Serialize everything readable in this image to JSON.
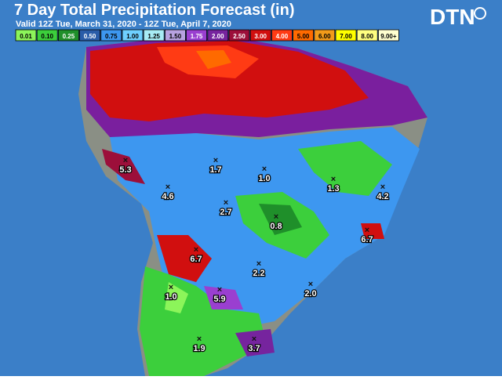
{
  "header": {
    "title": "7 Day Total Precipitation Forecast (in)",
    "subtitle": "Valid 12Z Tue, March 31, 2020 - 12Z Tue, April 7, 2020",
    "logo": "DTN"
  },
  "legend": [
    {
      "label": "0.01",
      "color": "#8cf55a"
    },
    {
      "label": "0.10",
      "color": "#3ccf3c"
    },
    {
      "label": "0.25",
      "color": "#1f8f2a"
    },
    {
      "label": "0.50",
      "color": "#2a5ca8"
    },
    {
      "label": "0.75",
      "color": "#3d97f0"
    },
    {
      "label": "1.00",
      "color": "#6fd0ff"
    },
    {
      "label": "1.25",
      "color": "#a8ecf5"
    },
    {
      "label": "1.50",
      "color": "#b7a2e0"
    },
    {
      "label": "1.75",
      "color": "#9a3fd0"
    },
    {
      "label": "2.00",
      "color": "#76249e"
    },
    {
      "label": "2.50",
      "color": "#9c0f3a"
    },
    {
      "label": "3.00",
      "color": "#d10f0f"
    },
    {
      "label": "4.00",
      "color": "#ff3b14"
    },
    {
      "label": "5.00",
      "color": "#ff6a00"
    },
    {
      "label": "6.00",
      "color": "#f29b1a"
    },
    {
      "label": "7.00",
      "color": "#ffff00"
    },
    {
      "label": "8.00",
      "color": "#ffff80"
    },
    {
      "label": "9.00+",
      "color": "#ffffd0"
    }
  ],
  "points": [
    {
      "label": "5.3"
    },
    {
      "label": "1.7"
    },
    {
      "label": "1.0"
    },
    {
      "label": "1.3"
    },
    {
      "label": "4.2"
    },
    {
      "label": "4.6"
    },
    {
      "label": "2.7"
    },
    {
      "label": "0.8"
    },
    {
      "label": "6.7"
    },
    {
      "label": "6.7"
    },
    {
      "label": "2.2"
    },
    {
      "label": "2.0"
    },
    {
      "label": "1.0"
    },
    {
      "label": "5.9"
    },
    {
      "label": "1.9"
    },
    {
      "label": "3.7"
    }
  ]
}
